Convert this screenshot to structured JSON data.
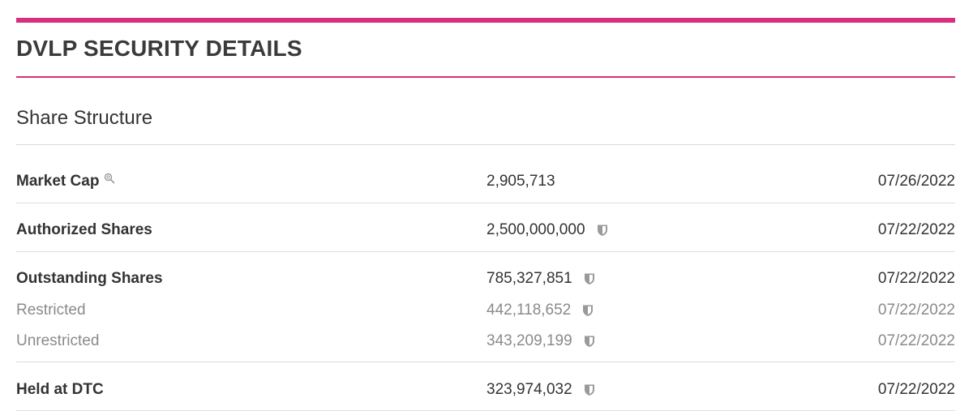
{
  "colors": {
    "accent": "#d6307f",
    "text": "#333333",
    "muted": "#8a8a8a",
    "rule": "#dddddd",
    "icon": "#9a9a9a"
  },
  "header": {
    "title": "DVLP SECURITY DETAILS"
  },
  "section": {
    "title": "Share Structure"
  },
  "rows": [
    {
      "label": "Market Cap",
      "value": "2,905,713",
      "date": "07/26/2022",
      "icon": "magnifier-icon"
    },
    {
      "label": "Authorized Shares",
      "value": "2,500,000,000",
      "date": "07/22/2022",
      "icon": "shield-icon"
    },
    {
      "label": "Outstanding Shares",
      "value": "785,327,851",
      "date": "07/22/2022",
      "icon": "shield-icon"
    },
    {
      "label": "Restricted",
      "value": "442,118,652",
      "date": "07/22/2022",
      "icon": "shield-icon"
    },
    {
      "label": "Unrestricted",
      "value": "343,209,199",
      "date": "07/22/2022",
      "icon": "shield-icon"
    },
    {
      "label": "Held at DTC",
      "value": "323,974,032",
      "date": "07/22/2022",
      "icon": "shield-icon"
    }
  ]
}
